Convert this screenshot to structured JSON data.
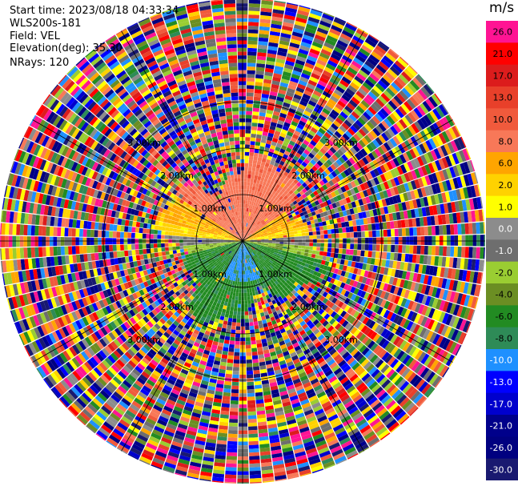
{
  "header": {
    "start_time": "Start time: 2023/08/18 04:33:34",
    "instrument": "WLS200s-181",
    "field": "Field: VEL",
    "elevation": "Elevation(deg): 35.30",
    "nrays": "NRays: 120"
  },
  "chart_data": {
    "type": "heatmap",
    "projection": "polar-ppi",
    "field": "VEL",
    "units": "m/s",
    "n_rays": 120,
    "elevation_deg": 35.3,
    "range_rings_km": [
      1.0,
      2.0,
      3.0
    ],
    "ring_label_texts": [
      "1.00km",
      "2.00km",
      "3.00km"
    ],
    "colorbar": {
      "title": "m/s",
      "ticks": [
        "26.0",
        "21.0",
        "17.0",
        "13.0",
        "10.0",
        "8.0",
        "6.0",
        "2.0",
        "1.0",
        "0.0",
        "-1.0",
        "-2.0",
        "-4.0",
        "-6.0",
        "-8.0",
        "-10.0",
        "-13.0",
        "-17.0",
        "-21.0",
        "-26.0",
        "-30.0"
      ],
      "colors": [
        "#ff1493",
        "#ff0000",
        "#dc1c1c",
        "#e8402a",
        "#f05a3c",
        "#f87858",
        "#ffa500",
        "#ffd200",
        "#ffff00",
        "#8c8c8c",
        "#6e6e6e",
        "#9acd32",
        "#6b8e23",
        "#228b22",
        "#2e8b57",
        "#1e90ff",
        "#0000ff",
        "#0000cd",
        "#00008b",
        "#000080",
        "#191970"
      ]
    },
    "pattern_note_dominant_sectors": [
      {
        "azimuth_from": 300,
        "azimuth_to": 60,
        "range_km": [
          0.0,
          1.5
        ],
        "dominant": "8.0"
      },
      {
        "azimuth_from": 60,
        "azimuth_to": 90,
        "range_km": [
          0.0,
          1.5
        ],
        "dominant": "2.0"
      },
      {
        "azimuth_from": 270,
        "azimuth_to": 300,
        "range_km": [
          0.0,
          1.5
        ],
        "dominant": "2.0"
      },
      {
        "azimuth_from": 90,
        "azimuth_to": 270,
        "range_km": [
          0.0,
          1.5
        ],
        "dominant": "-6.0"
      },
      {
        "azimuth_from": 150,
        "azimuth_to": 210,
        "range_km": [
          0.0,
          0.9
        ],
        "dominant": "-10.0"
      }
    ]
  }
}
